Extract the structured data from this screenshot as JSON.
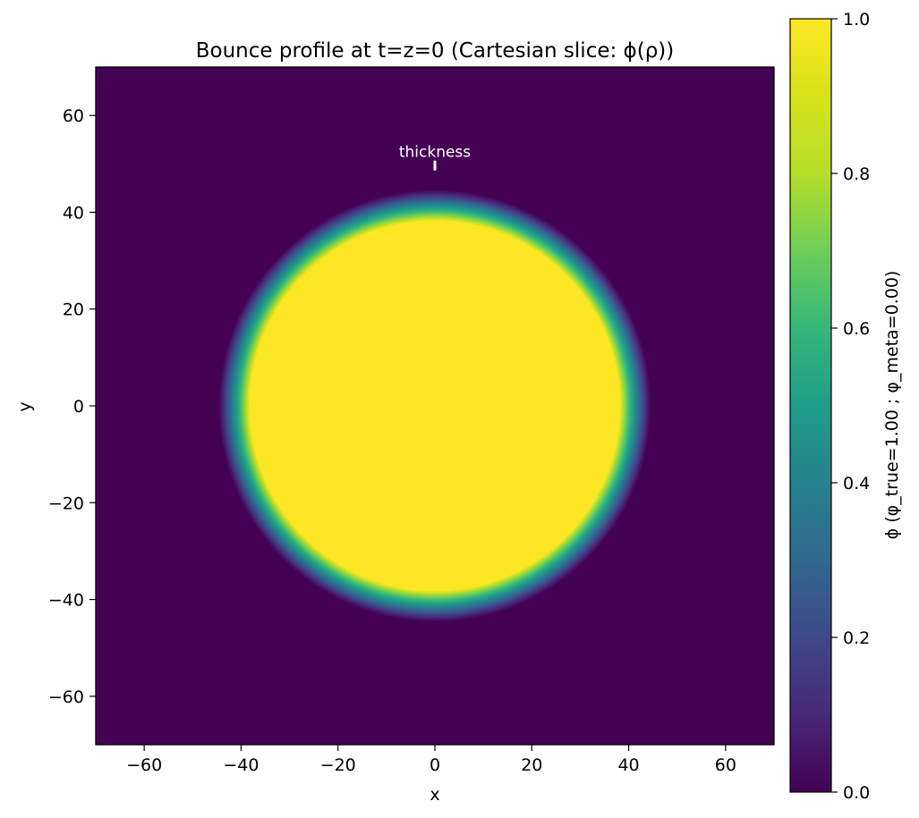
{
  "chart_data": {
    "type": "heatmap",
    "title": "Bounce profile at t=z=0 (Cartesian slice: ϕ(ρ))",
    "xlabel": "x",
    "ylabel": "y",
    "xlim": [
      -70,
      70
    ],
    "ylim": [
      -70,
      70
    ],
    "xticks": [
      -60,
      -40,
      -20,
      0,
      20,
      40,
      60
    ],
    "yticks": [
      -60,
      -40,
      -20,
      0,
      20,
      40,
      60
    ],
    "xtick_labels": [
      "−60",
      "−40",
      "−20",
      "0",
      "20",
      "40",
      "60"
    ],
    "ytick_labels": [
      "60",
      "40",
      "20",
      "0",
      "−20",
      "−40",
      "−60"
    ],
    "colormap": "viridis",
    "profile": {
      "shape": "radial bubble",
      "center": [
        0,
        0
      ],
      "radius": 46,
      "inside_value": 1.0,
      "outside_value": 0.0
    },
    "annotation": {
      "text": "thickness",
      "x": 0,
      "y": 49,
      "color": "#ffffff"
    },
    "colorbar": {
      "label": "ϕ  (φ_true=1.00 ;  φ_meta=0.00)",
      "range": [
        0.0,
        1.0
      ],
      "ticks": [
        0.0,
        0.2,
        0.4,
        0.6,
        0.8,
        1.0
      ],
      "tick_labels": [
        "1.0",
        "0.8",
        "0.6",
        "0.4",
        "0.2",
        "0.0"
      ]
    },
    "grid": false
  }
}
